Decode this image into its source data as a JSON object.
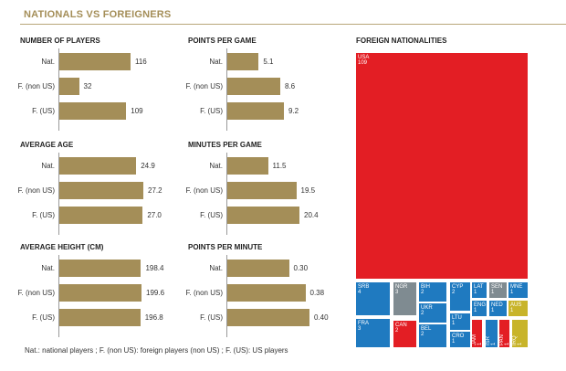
{
  "header": {
    "title": "NATIONALS VS FOREIGNERS"
  },
  "footnote": "Nat.: national players ; F. (non US): foreign players (non US) ; F. (US): US players",
  "colors": {
    "bar": "#a48e58",
    "europe": "#1f7ac0",
    "americas": "#e31e24",
    "africa": "#7f8b91",
    "asia_oceania": "#c8b42a"
  },
  "chart_data": [
    {
      "type": "bar",
      "orientation": "horizontal",
      "title": "NUMBER OF PLAYERS",
      "categories": [
        "Nat.",
        "F. (non US)",
        "F. (US)"
      ],
      "values": [
        116,
        32,
        109
      ],
      "labels": [
        "116",
        "32",
        "109"
      ]
    },
    {
      "type": "bar",
      "orientation": "horizontal",
      "title": "POINTS PER GAME",
      "categories": [
        "Nat.",
        "F. (non US)",
        "F. (US)"
      ],
      "values": [
        5.1,
        8.6,
        9.2
      ],
      "labels": [
        "5.1",
        "8.6",
        "9.2"
      ]
    },
    {
      "type": "bar",
      "orientation": "horizontal",
      "title": "AVERAGE AGE",
      "categories": [
        "Nat.",
        "F. (non US)",
        "F. (US)"
      ],
      "values": [
        24.9,
        27.2,
        27.0
      ],
      "labels": [
        "24.9",
        "27.2",
        "27.0"
      ]
    },
    {
      "type": "bar",
      "orientation": "horizontal",
      "title": "MINUTES PER GAME",
      "categories": [
        "Nat.",
        "F. (non US)",
        "F. (US)"
      ],
      "values": [
        11.5,
        19.5,
        20.4
      ],
      "labels": [
        "11.5",
        "19.5",
        "20.4"
      ]
    },
    {
      "type": "bar",
      "orientation": "horizontal",
      "title": "AVERAGE HEIGHT (CM)",
      "categories": [
        "Nat.",
        "F. (non US)",
        "F. (US)"
      ],
      "values": [
        198.4,
        199.6,
        196.8
      ],
      "labels": [
        "198.4",
        "199.6",
        "196.8"
      ]
    },
    {
      "type": "bar",
      "orientation": "horizontal",
      "title": "POINTS PER MINUTE",
      "categories": [
        "Nat.",
        "F. (non US)",
        "F. (US)"
      ],
      "values": [
        0.3,
        0.38,
        0.4
      ],
      "labels": [
        "0.30",
        "0.38",
        "0.40"
      ]
    },
    {
      "type": "treemap",
      "title": "FOREIGN NATIONALITIES",
      "items": [
        {
          "code": "USA",
          "value": 109,
          "group": "americas"
        },
        {
          "code": "SRB",
          "value": 4,
          "group": "europe"
        },
        {
          "code": "FRA",
          "value": 3,
          "group": "europe"
        },
        {
          "code": "NGR",
          "value": 3,
          "group": "africa"
        },
        {
          "code": "CAN",
          "value": 2,
          "group": "americas"
        },
        {
          "code": "BIH",
          "value": 2,
          "group": "europe"
        },
        {
          "code": "UKR",
          "value": 2,
          "group": "europe"
        },
        {
          "code": "BEL",
          "value": 2,
          "group": "europe"
        },
        {
          "code": "CYP",
          "value": 2,
          "group": "europe"
        },
        {
          "code": "LTU",
          "value": 1,
          "group": "europe"
        },
        {
          "code": "CRO",
          "value": 1,
          "group": "europe"
        },
        {
          "code": "LAT",
          "value": 1,
          "group": "europe"
        },
        {
          "code": "SEN",
          "value": 1,
          "group": "africa"
        },
        {
          "code": "MNE",
          "value": 1,
          "group": "europe"
        },
        {
          "code": "ENG",
          "value": 1,
          "group": "europe"
        },
        {
          "code": "NED",
          "value": 1,
          "group": "europe"
        },
        {
          "code": "AUS",
          "value": 1,
          "group": "asia_oceania"
        },
        {
          "code": "JAM",
          "value": 1,
          "group": "americas"
        },
        {
          "code": "ISR",
          "value": 1,
          "group": "europe"
        },
        {
          "code": "PAN",
          "value": 1,
          "group": "americas"
        },
        {
          "code": "IRQ",
          "value": 1,
          "group": "asia_oceania"
        }
      ]
    }
  ]
}
